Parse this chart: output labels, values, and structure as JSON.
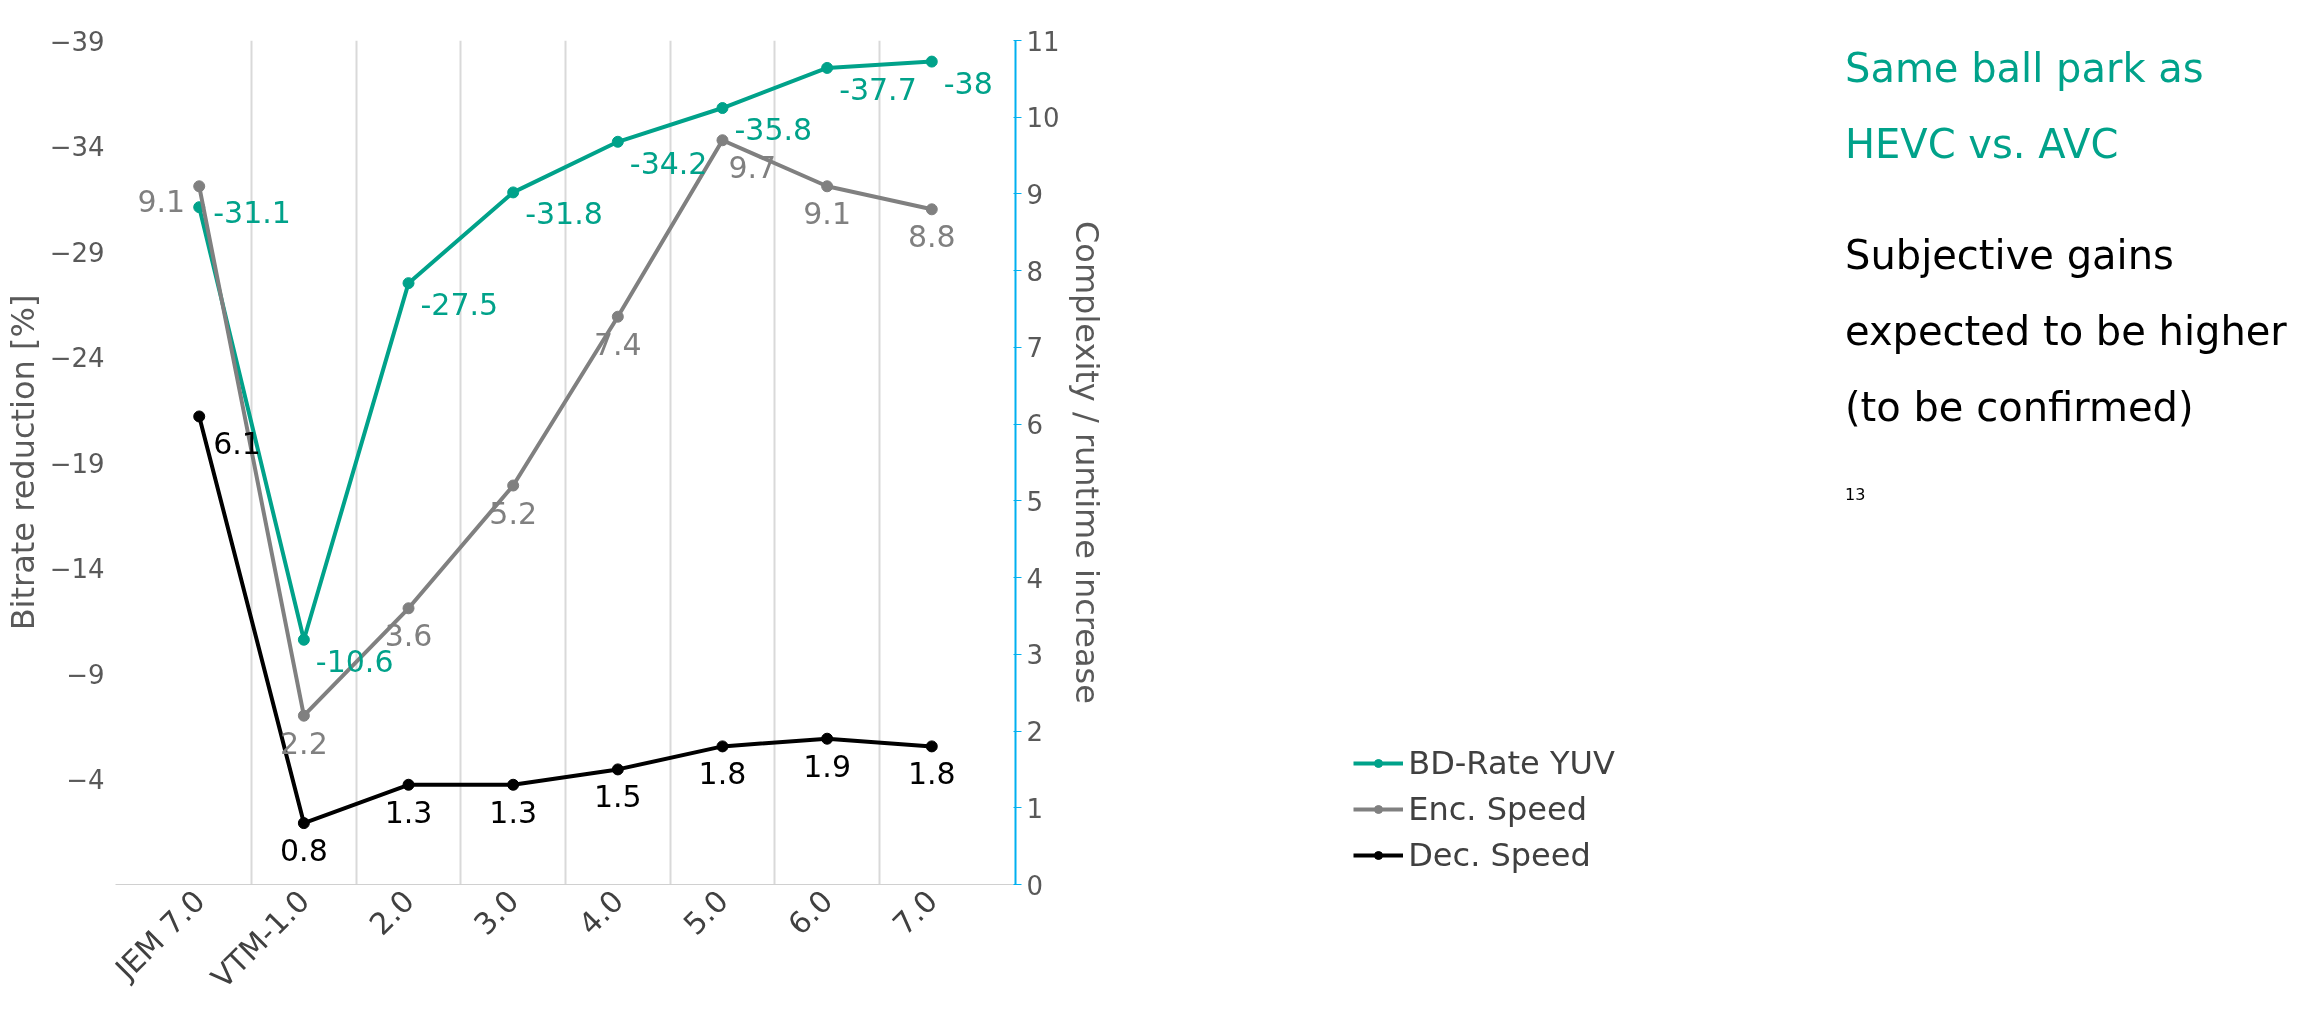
{
  "chart_data": {
    "type": "line",
    "ylabel": "Bitrate reduction [%]",
    "y2label": "Complexity / runtime increase",
    "categories": [
      "JEM 7.0",
      "VTM-1.0",
      "2.0",
      "3.0",
      "4.0",
      "5.0",
      "6.0",
      "7.0"
    ],
    "series": [
      {
        "name": "BD-Rate YUV",
        "color": "#00a28a",
        "values": [
          -31.1,
          -10.6,
          -27.5,
          -31.8,
          -34.2,
          -35.8,
          -37.7,
          -38
        ]
      },
      {
        "name": "Enc. Speed",
        "color": "#808080",
        "axis": "y2",
        "values": [
          9.1,
          2.2,
          3.6,
          5.2,
          7.4,
          9.7,
          9.1,
          8.8
        ]
      },
      {
        "name": "Dec. Speed",
        "color": "#000000",
        "axis": "y2",
        "values": [
          6.1,
          0.8,
          1.3,
          1.3,
          1.5,
          1.8,
          1.9,
          1.8
        ]
      }
    ],
    "ylim": [
      1,
      -39
    ],
    "yticks": [
      -39,
      -34,
      -29,
      -24,
      -19,
      -14,
      -9,
      -4
    ],
    "y2lim": [
      0,
      11
    ],
    "y2ticks": [
      0,
      1,
      2,
      3,
      4,
      5,
      6,
      7,
      8,
      9,
      10,
      11
    ],
    "data_labels": true,
    "marker": "circle",
    "line_style": "solid",
    "grid": "x",
    "legend": "right",
    "annotations": [
      "Same ball park as HEVC vs. AVC",
      "Subjective gains expected to be higher (to be confirmed)",
      "13"
    ]
  }
}
